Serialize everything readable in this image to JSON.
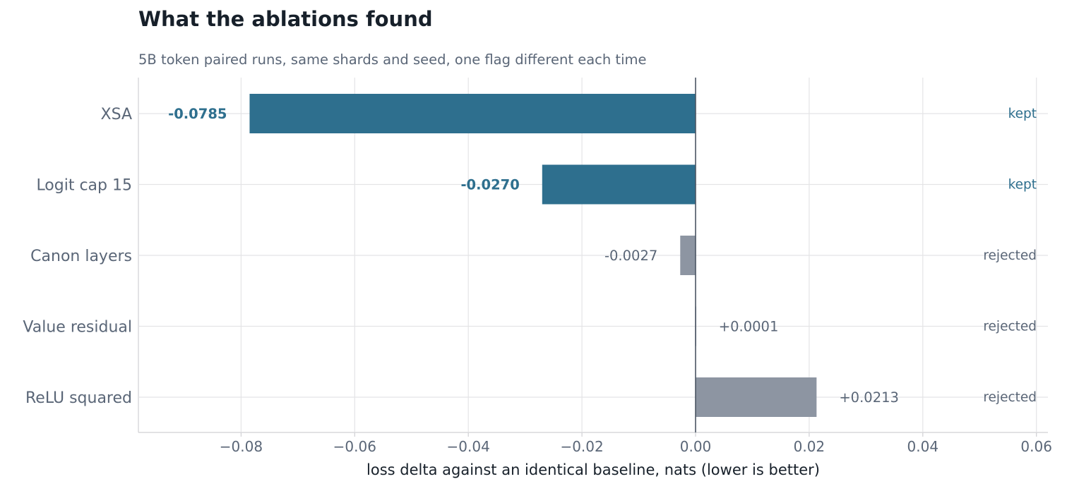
{
  "chart_data": {
    "type": "bar",
    "orientation": "horizontal",
    "title": "What the ablations found",
    "subtitle": "5B token paired runs, same shards and seed, one flag different each time",
    "xlabel": "loss delta against an identical baseline, nats (lower is better)",
    "ylabel": "",
    "xlim": [
      -0.098,
      0.061
    ],
    "xticks": [
      -0.08,
      -0.06,
      -0.04,
      -0.02,
      0.0,
      0.02,
      0.04,
      0.06
    ],
    "xtick_labels": [
      "−0.08",
      "−0.06",
      "−0.04",
      "−0.02",
      "0.00",
      "0.02",
      "0.04",
      "0.06"
    ],
    "grid": true,
    "categories": [
      "XSA",
      "Logit cap 15",
      "Canon layers",
      "Value residual",
      "ReLU squared"
    ],
    "values": [
      -0.0785,
      -0.027,
      -0.0027,
      0.0001,
      0.0213
    ],
    "value_labels": [
      "-0.0785",
      "-0.0270",
      "-0.0027",
      "+0.0001",
      "+0.0213"
    ],
    "decisions": [
      "kept",
      "kept",
      "rejected",
      "rejected",
      "rejected"
    ],
    "colors": {
      "kept": "#2e6f8e",
      "rejected": "#8d95a2",
      "rejected_text": "#5a6677",
      "axis_text": "#5a6677",
      "grid": "#e4e4e6",
      "zero_line": "#4b5563",
      "title": "#17202a"
    }
  }
}
